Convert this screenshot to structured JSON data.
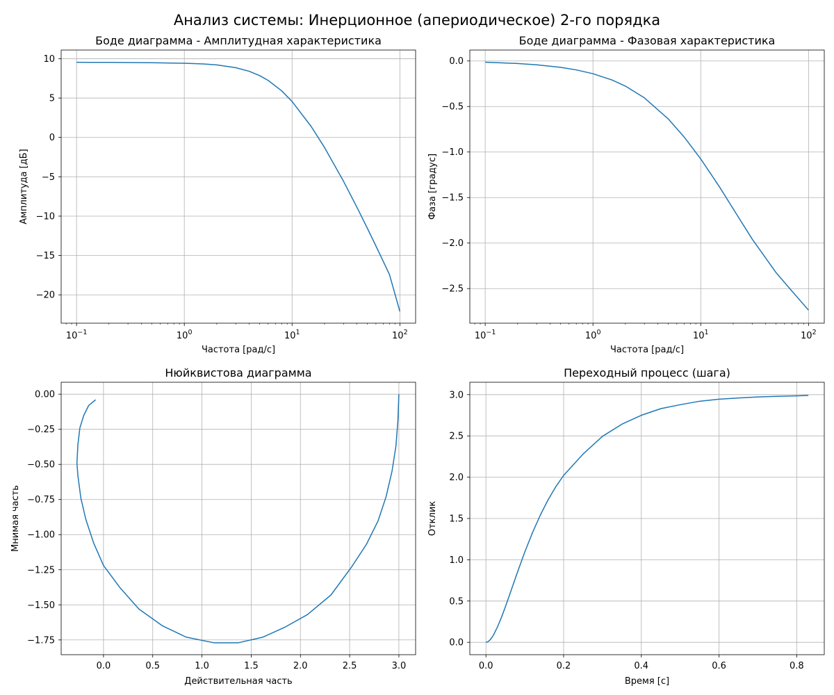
{
  "figure": {
    "title": "Анализ системы: Инерционное (апериодическое) 2-го порядка"
  },
  "colors": {
    "line": "#1f77b4",
    "grid": "#b0b0b0",
    "axes": "#000000"
  },
  "chart_data": [
    {
      "type": "line",
      "title": "Боде диаграмма - Амплитудная характеристика",
      "xlabel": "Частота [рад/с]",
      "ylabel": "Амплитуда [дБ]",
      "xscale": "log",
      "xlim": [
        0.072,
        140
      ],
      "ylim": [
        -23.6,
        11.1
      ],
      "xticks": [
        0.1,
        1,
        10,
        100
      ],
      "xtick_labels": [
        {
          "base": "10",
          "exp": "−1"
        },
        {
          "base": "10",
          "exp": "0"
        },
        {
          "base": "10",
          "exp": "1"
        },
        {
          "base": "10",
          "exp": "2"
        }
      ],
      "yticks": [
        10,
        5,
        0,
        -5,
        -10,
        -15,
        -20
      ],
      "ytick_labels": [
        "10",
        "5",
        "0",
        "−5",
        "−10",
        "−15",
        "−20"
      ],
      "grid": true,
      "x": [
        0.1,
        0.2,
        0.5,
        1,
        1.5,
        2,
        3,
        4,
        5,
        6,
        8,
        10,
        15,
        20,
        30,
        40,
        50,
        60,
        80,
        100
      ],
      "y": [
        9.54,
        9.53,
        9.49,
        9.42,
        9.33,
        9.21,
        8.86,
        8.4,
        7.85,
        7.24,
        5.92,
        4.56,
        1.41,
        -1.28,
        -5.57,
        -8.88,
        -11.56,
        -13.8,
        -17.4,
        -22.1
      ]
    },
    {
      "type": "line",
      "title": "Боде диаграмма - Фазовая характеристика",
      "xlabel": "Частота [рад/с]",
      "ylabel": "Фаза [градус]",
      "xscale": "log",
      "xlim": [
        0.072,
        140
      ],
      "ylim": [
        -2.88,
        0.12
      ],
      "xticks": [
        0.1,
        1,
        10,
        100
      ],
      "xtick_labels": [
        {
          "base": "10",
          "exp": "−1"
        },
        {
          "base": "10",
          "exp": "0"
        },
        {
          "base": "10",
          "exp": "1"
        },
        {
          "base": "10",
          "exp": "2"
        }
      ],
      "yticks": [
        0.0,
        -0.5,
        -1.0,
        -1.5,
        -2.0,
        -2.5
      ],
      "ytick_labels": [
        "0.0",
        "−0.5",
        "−1.0",
        "−1.5",
        "−2.0",
        "−2.5"
      ],
      "grid": true,
      "x": [
        0.1,
        0.2,
        0.3,
        0.5,
        0.7,
        1,
        1.5,
        2,
        3,
        5,
        7,
        10,
        15,
        20,
        30,
        50,
        70,
        100
      ],
      "y": [
        -0.014,
        -0.028,
        -0.042,
        -0.07,
        -0.098,
        -0.14,
        -0.209,
        -0.276,
        -0.405,
        -0.637,
        -0.834,
        -1.076,
        -1.387,
        -1.624,
        -1.956,
        -2.325,
        -2.526,
        -2.737
      ]
    },
    {
      "type": "line",
      "title": "Нюйквистова диаграмма",
      "xlabel": "Действительная часть",
      "ylabel": "Мнимая часть",
      "xlim": [
        -0.43,
        3.17
      ],
      "ylim": [
        -1.855,
        0.085
      ],
      "xticks": [
        0.0,
        0.5,
        1.0,
        1.5,
        2.0,
        2.5,
        3.0
      ],
      "xtick_labels": [
        "0.0",
        "0.5",
        "1.0",
        "1.5",
        "2.0",
        "2.5",
        "3.0"
      ],
      "yticks": [
        0.0,
        -0.25,
        -0.5,
        -0.75,
        -1.0,
        -1.25,
        -1.5,
        -1.75
      ],
      "ytick_labels": [
        "0.00",
        "−0.25",
        "−0.50",
        "−0.75",
        "−1.00",
        "−1.25",
        "−1.50",
        "−1.75"
      ],
      "grid": true,
      "x": [
        3.0,
        2.99,
        2.97,
        2.93,
        2.87,
        2.79,
        2.67,
        2.52,
        2.31,
        2.07,
        1.84,
        1.62,
        1.37,
        1.12,
        0.84,
        0.6,
        0.36,
        0.17,
        0.0,
        -0.1,
        -0.18,
        -0.23,
        -0.26,
        -0.27,
        -0.26,
        -0.24,
        -0.2,
        -0.15,
        -0.08
      ],
      "y": [
        0.0,
        -0.19,
        -0.37,
        -0.55,
        -0.73,
        -0.9,
        -1.07,
        -1.23,
        -1.43,
        -1.57,
        -1.66,
        -1.73,
        -1.77,
        -1.77,
        -1.73,
        -1.65,
        -1.53,
        -1.38,
        -1.22,
        -1.06,
        -0.89,
        -0.74,
        -0.58,
        -0.49,
        -0.36,
        -0.24,
        -0.15,
        -0.08,
        -0.04
      ]
    },
    {
      "type": "line",
      "title": "Переходный процесс (шага)",
      "xlabel": "Время [с]",
      "ylabel": "Отклик",
      "xlim": [
        -0.0415,
        0.871
      ],
      "ylim": [
        -0.15,
        3.15
      ],
      "xticks": [
        0.0,
        0.2,
        0.4,
        0.6,
        0.8
      ],
      "xtick_labels": [
        "0.0",
        "0.2",
        "0.4",
        "0.6",
        "0.8"
      ],
      "yticks": [
        0.0,
        0.5,
        1.0,
        1.5,
        2.0,
        2.5,
        3.0
      ],
      "ytick_labels": [
        "0.0",
        "0.5",
        "1.0",
        "1.5",
        "2.0",
        "2.5",
        "3.0"
      ],
      "grid": true,
      "x": [
        0,
        0.005,
        0.01,
        0.015,
        0.02,
        0.03,
        0.04,
        0.05,
        0.06,
        0.08,
        0.1,
        0.12,
        0.14,
        0.16,
        0.18,
        0.2,
        0.25,
        0.3,
        0.35,
        0.4,
        0.45,
        0.5,
        0.55,
        0.6,
        0.65,
        0.7,
        0.75,
        0.8,
        0.83
      ],
      "y": [
        0,
        0.007,
        0.026,
        0.055,
        0.093,
        0.189,
        0.303,
        0.43,
        0.564,
        0.834,
        1.094,
        1.33,
        1.541,
        1.726,
        1.886,
        2.022,
        2.28,
        2.495,
        2.642,
        2.75,
        2.83,
        2.878,
        2.92,
        2.945,
        2.96,
        2.972,
        2.98,
        2.985,
        2.99
      ]
    }
  ]
}
